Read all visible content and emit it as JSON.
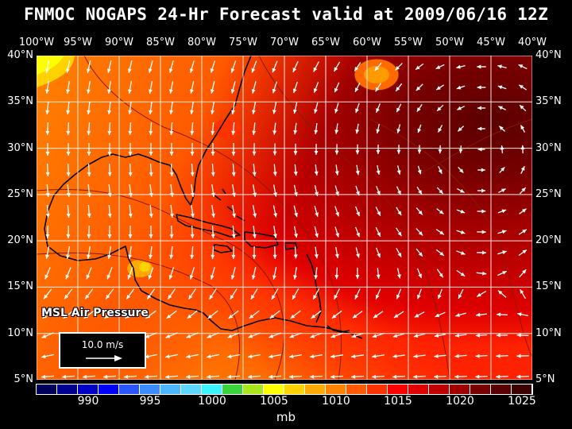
{
  "title": "FNMOC NOGAPS 24-Hr Forecast valid at 2009/06/16 12Z",
  "lon_labels": [
    "100°W",
    "95°W",
    "90°W",
    "85°W",
    "80°W",
    "75°W",
    "70°W",
    "65°W",
    "60°W",
    "55°W",
    "50°W",
    "45°W",
    "40°W"
  ],
  "lat_labels": [
    "40°N",
    "35°N",
    "30°N",
    "25°N",
    "20°N",
    "15°N",
    "10°N",
    "5°N"
  ],
  "layer_label": "MSL Air Pressure",
  "reference_vector": "10.0 m/s",
  "colorbar": {
    "unit": "mb",
    "labels": [
      "990",
      "995",
      "1000",
      "1005",
      "1010",
      "1015",
      "1020",
      "1025"
    ],
    "colors": [
      "#00005a",
      "#000090",
      "#0000c8",
      "#0000ff",
      "#2a55ff",
      "#3c8cff",
      "#4cb6ff",
      "#5ed6ff",
      "#3cf4ff",
      "#3cd23c",
      "#a8e61e",
      "#ffff00",
      "#ffd200",
      "#ffaa00",
      "#ff8200",
      "#ff5a00",
      "#ff3200",
      "#ff0000",
      "#e00000",
      "#c00000",
      "#a00000",
      "#780000",
      "#5a0000",
      "#3c0000"
    ]
  },
  "colors": {
    "coast": "#000000",
    "grid": "#ffffff",
    "arrows": "#ffffff",
    "isobar": "#8a1a00"
  }
}
